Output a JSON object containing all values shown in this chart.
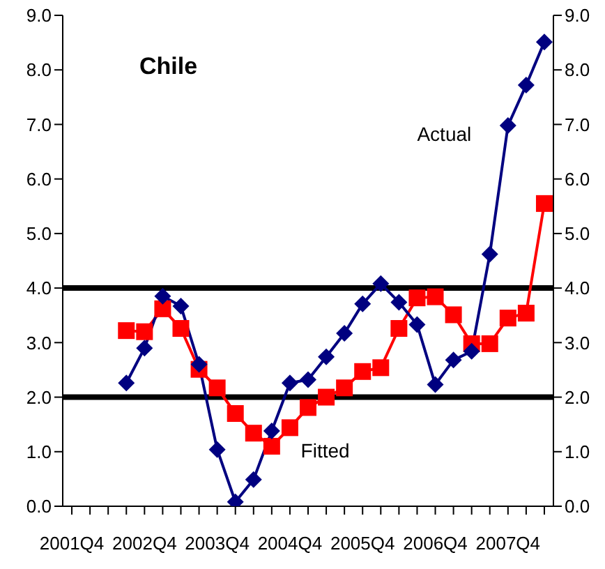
{
  "chart_data": {
    "type": "line",
    "title": "Chile",
    "categories": [
      "2001Q4",
      null,
      null,
      null,
      "2002Q4",
      null,
      null,
      null,
      "2003Q4",
      null,
      null,
      null,
      "2004Q4",
      null,
      null,
      null,
      "2005Q4",
      null,
      null,
      null,
      "2006Q4",
      null,
      null,
      null,
      "2007Q4",
      null,
      null
    ],
    "series": [
      {
        "name": "Actual",
        "color": "#000080",
        "marker": "diamond",
        "values": [
          null,
          null,
          null,
          2.26,
          2.9,
          3.85,
          3.67,
          2.6,
          1.04,
          0.08,
          0.49,
          1.38,
          2.26,
          2.32,
          2.74,
          3.17,
          3.71,
          4.08,
          3.74,
          3.33,
          2.23,
          2.68,
          2.84,
          4.62,
          6.98,
          7.72,
          8.51
        ]
      },
      {
        "name": "Fitted",
        "color": "#ff0000",
        "marker": "square",
        "values": [
          null,
          null,
          null,
          3.22,
          3.2,
          3.62,
          3.26,
          2.51,
          2.17,
          1.7,
          1.34,
          1.1,
          1.44,
          1.81,
          2.0,
          2.17,
          2.47,
          2.54,
          3.26,
          3.82,
          3.84,
          3.51,
          2.98,
          2.98,
          3.45,
          3.54,
          5.55
        ]
      }
    ],
    "ylim": [
      0,
      9
    ],
    "yticks": [
      {
        "value": 0,
        "label": "0.0"
      },
      {
        "value": 1,
        "label": "1.0"
      },
      {
        "value": 2,
        "label": "2.0"
      },
      {
        "value": 3,
        "label": "3.0"
      },
      {
        "value": 4,
        "label": "4.0"
      },
      {
        "value": 5,
        "label": "5.0"
      },
      {
        "value": 6,
        "label": "6.0"
      },
      {
        "value": 7,
        "label": "7.0"
      },
      {
        "value": 8,
        "label": "8.0"
      },
      {
        "value": 9,
        "label": "9.0"
      }
    ],
    "y2lim": [
      0,
      9
    ],
    "y2ticks": [
      {
        "value": 0,
        "label": "0.0"
      },
      {
        "value": 1,
        "label": "1.0"
      },
      {
        "value": 2,
        "label": "2.0"
      },
      {
        "value": 3,
        "label": "3.0"
      },
      {
        "value": 4,
        "label": "4.0"
      },
      {
        "value": 5,
        "label": "5.0"
      },
      {
        "value": 6,
        "label": "6.0"
      },
      {
        "value": 7,
        "label": "7.0"
      },
      {
        "value": 8,
        "label": "8.0"
      },
      {
        "value": 9,
        "label": "9.0"
      }
    ],
    "ref_lines": [
      {
        "axis": "y",
        "value": 4,
        "color": "#000000"
      },
      {
        "axis": "y",
        "value": 2,
        "color": "#000000"
      }
    ],
    "grid": false
  }
}
